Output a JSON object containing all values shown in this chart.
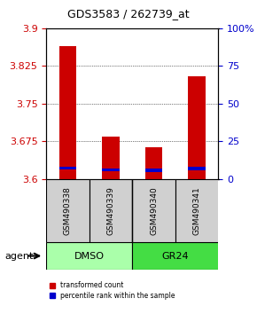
{
  "title": "GDS3583 / 262739_at",
  "samples": [
    "GSM490338",
    "GSM490339",
    "GSM490340",
    "GSM490341"
  ],
  "red_values": [
    3.865,
    3.685,
    3.663,
    3.805
  ],
  "blue_values": [
    3.622,
    3.618,
    3.617,
    3.621
  ],
  "y_min": 3.6,
  "y_max": 3.9,
  "y_ticks": [
    3.6,
    3.675,
    3.75,
    3.825,
    3.9
  ],
  "y_tick_labels": [
    "3.6",
    "3.675",
    "3.75",
    "3.825",
    "3.9"
  ],
  "y2_ticks": [
    0,
    25,
    50,
    75,
    100
  ],
  "y2_tick_labels": [
    "0",
    "25",
    "50",
    "75",
    "100%"
  ],
  "groups": [
    {
      "label": "DMSO",
      "samples": [
        0,
        1
      ],
      "color": "#90EE90"
    },
    {
      "label": "GR24",
      "samples": [
        2,
        3
      ],
      "color": "#00CC00"
    }
  ],
  "bar_width": 0.4,
  "red_color": "#CC0000",
  "blue_color": "#0000CC",
  "legend_red": "transformed count",
  "legend_blue": "percentile rank within the sample",
  "agent_label": "agent",
  "background_color": "#ffffff",
  "plot_bg": "#ffffff",
  "grid_color": "#000000",
  "left_tick_color": "#CC0000",
  "right_tick_color": "#0000CC"
}
